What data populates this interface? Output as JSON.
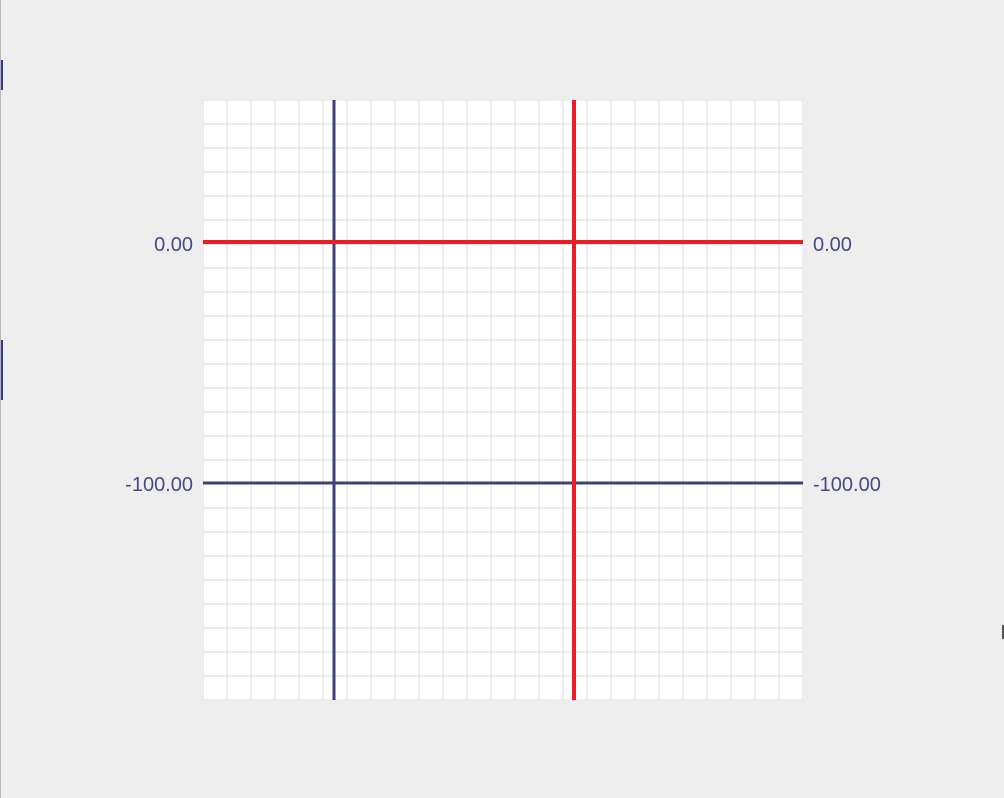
{
  "axes": {
    "left_labels": [
      "0.00",
      "-100.00"
    ],
    "right_labels": [
      "0.00",
      "-100.00"
    ]
  },
  "colors": {
    "background": "#eeeeee",
    "panel": "#ffffff",
    "grid_line": "#d6d6d6",
    "red_axis": "#ee1c24",
    "blue_axis": "#3f3f7a",
    "label": "#4a4a82"
  }
}
